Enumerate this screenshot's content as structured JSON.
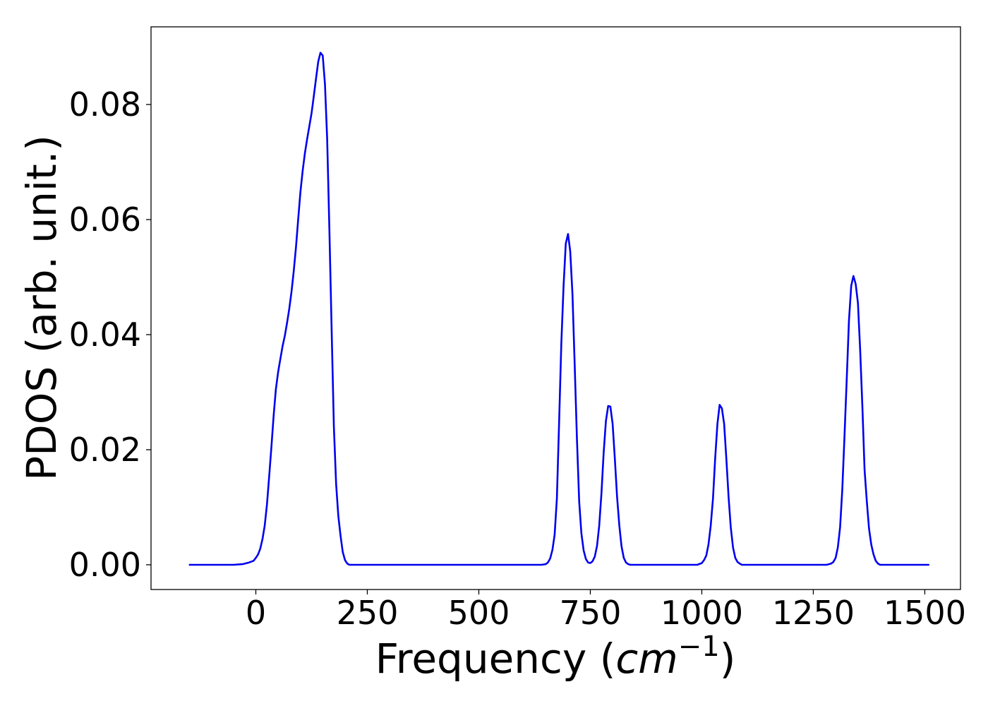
{
  "chart_data": {
    "type": "line",
    "title": "",
    "xlabel": "Frequency (",
    "xlabel_math_base": "cm",
    "xlabel_math_sup": "−1",
    "xlabel_close": ")",
    "ylabel": "PDOS (arb. unit.)",
    "xlim": [
      -235,
      1580
    ],
    "ylim": [
      -0.0043,
      0.0935
    ],
    "grid": false,
    "xticks": [
      0,
      250,
      500,
      750,
      1000,
      1250,
      1500
    ],
    "xtick_labels": [
      "0",
      "250",
      "500",
      "750",
      "1000",
      "1250",
      "1500"
    ],
    "yticks": [
      0.0,
      0.02,
      0.04,
      0.06,
      0.08
    ],
    "ytick_labels": [
      "0.00",
      "0.02",
      "0.04",
      "0.06",
      "0.08"
    ],
    "series": [
      {
        "color": "#0000ee",
        "x": [
          -150,
          -100,
          -50,
          -30,
          -15,
          -5,
          0,
          5,
          10,
          15,
          20,
          25,
          30,
          35,
          40,
          45,
          50,
          55,
          60,
          65,
          70,
          75,
          80,
          85,
          90,
          95,
          100,
          105,
          110,
          115,
          120,
          125,
          130,
          135,
          140,
          145,
          150,
          155,
          160,
          165,
          170,
          175,
          180,
          185,
          190,
          195,
          200,
          205,
          210,
          220,
          250,
          400,
          550,
          640,
          650,
          655,
          660,
          665,
          670,
          675,
          680,
          685,
          690,
          695,
          700,
          705,
          710,
          715,
          720,
          725,
          730,
          735,
          740,
          745,
          750,
          755,
          760,
          765,
          770,
          775,
          780,
          785,
          790,
          795,
          800,
          805,
          810,
          815,
          820,
          825,
          830,
          835,
          840,
          850,
          900,
          990,
          1000,
          1005,
          1010,
          1015,
          1020,
          1025,
          1030,
          1035,
          1040,
          1045,
          1050,
          1055,
          1060,
          1065,
          1070,
          1075,
          1080,
          1085,
          1090,
          1100,
          1150,
          1250,
          1280,
          1290,
          1295,
          1300,
          1305,
          1310,
          1315,
          1320,
          1325,
          1330,
          1335,
          1340,
          1345,
          1350,
          1355,
          1360,
          1365,
          1370,
          1375,
          1380,
          1385,
          1390,
          1395,
          1400,
          1410,
          1450,
          1510
        ],
        "y": [
          0,
          0,
          0,
          0.0001,
          0.0004,
          0.0007,
          0.0012,
          0.0018,
          0.0028,
          0.0045,
          0.0068,
          0.0105,
          0.0155,
          0.0205,
          0.026,
          0.0305,
          0.0335,
          0.0358,
          0.038,
          0.0398,
          0.042,
          0.0445,
          0.0475,
          0.051,
          0.0552,
          0.06,
          0.0648,
          0.0685,
          0.0715,
          0.074,
          0.0762,
          0.0785,
          0.0815,
          0.0845,
          0.0875,
          0.089,
          0.0885,
          0.0835,
          0.074,
          0.058,
          0.041,
          0.024,
          0.014,
          0.0085,
          0.005,
          0.0022,
          0.0008,
          0.0002,
          0,
          0,
          0,
          0,
          0,
          0,
          0.0001,
          0.0004,
          0.0011,
          0.0026,
          0.0052,
          0.0115,
          0.0245,
          0.0385,
          0.0485,
          0.0558,
          0.0575,
          0.0545,
          0.047,
          0.0345,
          0.022,
          0.011,
          0.0055,
          0.0025,
          0.001,
          0.0004,
          0.0003,
          0.0006,
          0.0014,
          0.0033,
          0.0068,
          0.0125,
          0.0195,
          0.025,
          0.0276,
          0.0275,
          0.0245,
          0.0185,
          0.0118,
          0.0068,
          0.0032,
          0.0012,
          0.0004,
          0.0001,
          0,
          0,
          0,
          0,
          0.0003,
          0.0008,
          0.0016,
          0.0035,
          0.0068,
          0.0115,
          0.0185,
          0.0245,
          0.0278,
          0.0272,
          0.0245,
          0.0185,
          0.0118,
          0.0065,
          0.003,
          0.0012,
          0.0005,
          0.0002,
          0,
          0,
          0,
          0,
          0,
          0.0002,
          0.0005,
          0.0012,
          0.003,
          0.0065,
          0.013,
          0.0225,
          0.0325,
          0.0425,
          0.0485,
          0.0502,
          0.0488,
          0.0455,
          0.0375,
          0.0275,
          0.0165,
          0.011,
          0.0063,
          0.0035,
          0.0018,
          0.0007,
          0.0002,
          0,
          0,
          0,
          0
        ]
      }
    ]
  }
}
